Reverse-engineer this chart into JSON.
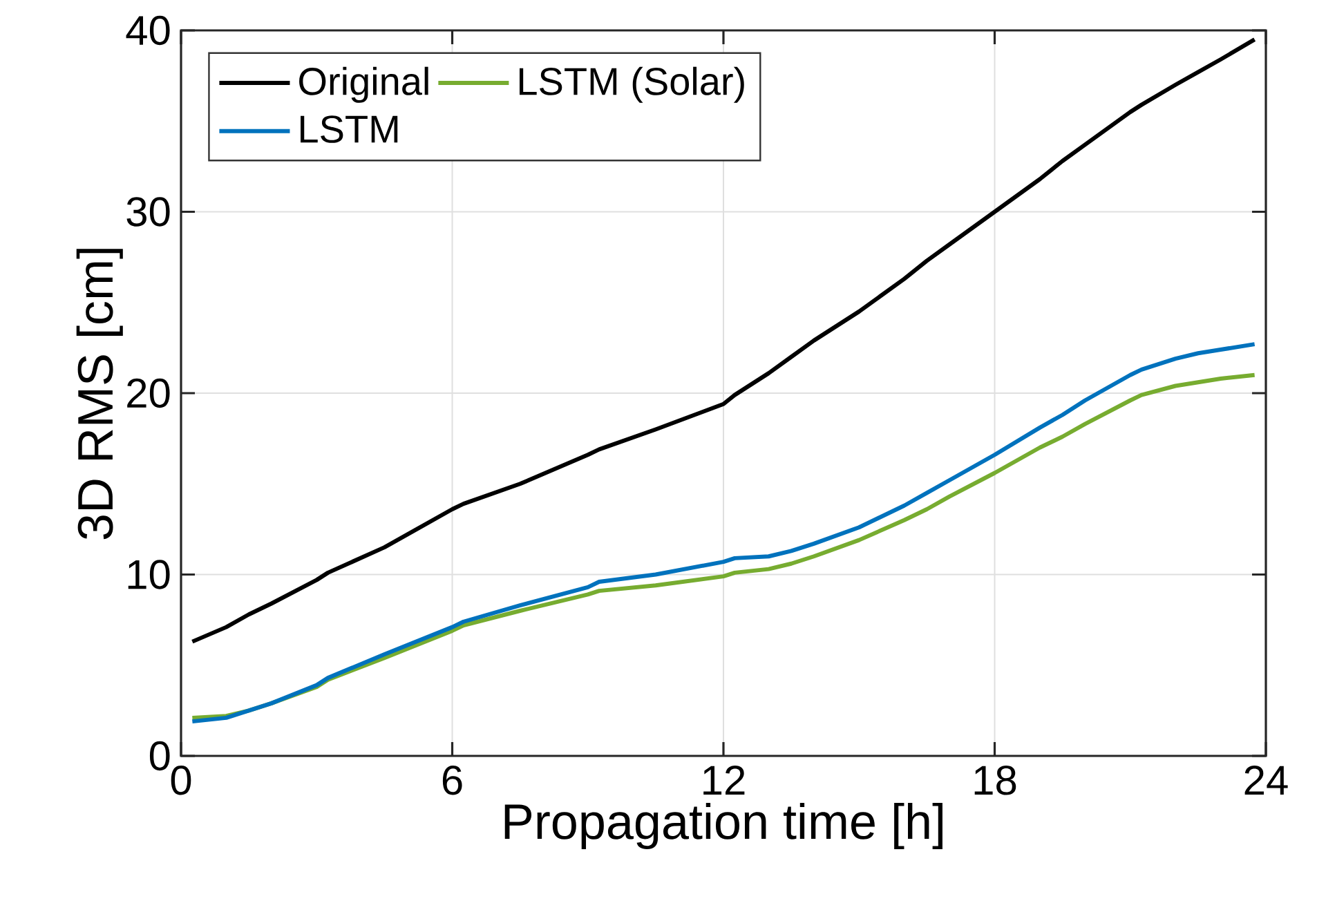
{
  "chart_data": {
    "type": "line",
    "xlabel": "Propagation time [h]",
    "ylabel": "3D RMS [cm]",
    "xlim": [
      0,
      24
    ],
    "ylim": [
      0,
      40
    ],
    "xticks": [
      0,
      6,
      12,
      18,
      24
    ],
    "yticks": [
      0,
      10,
      20,
      30,
      40
    ],
    "grid": true,
    "legend": "top left",
    "line_style": "solid",
    "marker": "none",
    "x": [
      0.25,
      1,
      1.5,
      2,
      3,
      3.25,
      4.5,
      6,
      6.25,
      7.5,
      9,
      9.25,
      10.5,
      12,
      12.25,
      13,
      13.5,
      14,
      15,
      16,
      16.5,
      17,
      18,
      19,
      19.5,
      20,
      21,
      21.25,
      22,
      22.5,
      23,
      23.75
    ],
    "series": [
      {
        "name": "Original",
        "color": "#000000",
        "values": [
          6.3,
          7.1,
          7.8,
          8.4,
          9.7,
          10.1,
          11.5,
          13.6,
          13.9,
          15.0,
          16.6,
          16.9,
          18.0,
          19.4,
          19.9,
          21.1,
          22.0,
          22.9,
          24.5,
          26.3,
          27.3,
          28.2,
          30.0,
          31.8,
          32.8,
          33.7,
          35.5,
          35.9,
          37.0,
          37.7,
          38.4,
          39.5
        ]
      },
      {
        "name": "LSTM (Solar)",
        "color": "#77ac30",
        "values": [
          2.1,
          2.2,
          2.5,
          2.9,
          3.8,
          4.2,
          5.4,
          6.9,
          7.2,
          8.0,
          8.9,
          9.1,
          9.4,
          9.9,
          10.1,
          10.3,
          10.6,
          11.0,
          11.9,
          13.0,
          13.6,
          14.3,
          15.6,
          17.0,
          17.6,
          18.3,
          19.6,
          19.9,
          20.4,
          20.6,
          20.8,
          21.0
        ]
      },
      {
        "name": "LSTM",
        "color": "#0072bd",
        "values": [
          1.9,
          2.1,
          2.5,
          2.9,
          3.9,
          4.3,
          5.6,
          7.1,
          7.4,
          8.3,
          9.3,
          9.6,
          10.0,
          10.7,
          10.9,
          11.0,
          11.3,
          11.7,
          12.6,
          13.8,
          14.5,
          15.2,
          16.6,
          18.1,
          18.8,
          19.6,
          21.0,
          21.3,
          21.9,
          22.2,
          22.4,
          22.7
        ]
      }
    ]
  }
}
